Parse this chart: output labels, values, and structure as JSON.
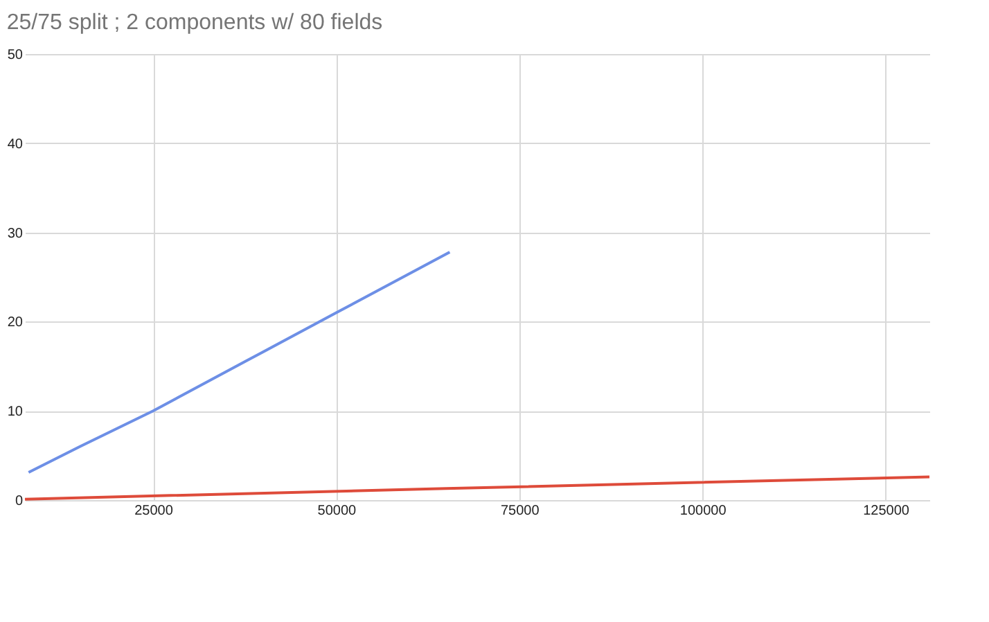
{
  "chart_data": {
    "type": "line",
    "title": "25/75 split ; 2 components w/ 80 fields",
    "series": [
      {
        "color": "#6d8fe6",
        "x": [
          8000,
          15000,
          25000,
          37500,
          50000,
          65500
        ],
        "values": [
          3.1,
          6.0,
          10.0,
          15.5,
          21.0,
          27.8
        ]
      },
      {
        "color": "#de4b3a",
        "x": [
          7500,
          65000,
          131000
        ],
        "values": [
          0.1,
          1.3,
          2.6
        ]
      }
    ],
    "xlim": [
      7500,
      131000
    ],
    "xticks": [
      25000,
      50000,
      75000,
      100000,
      125000
    ],
    "ylim": [
      0,
      50
    ],
    "yticks": [
      0,
      10,
      20,
      30,
      40,
      50
    ],
    "grid": true,
    "marker": "none",
    "line_style": "solid"
  }
}
